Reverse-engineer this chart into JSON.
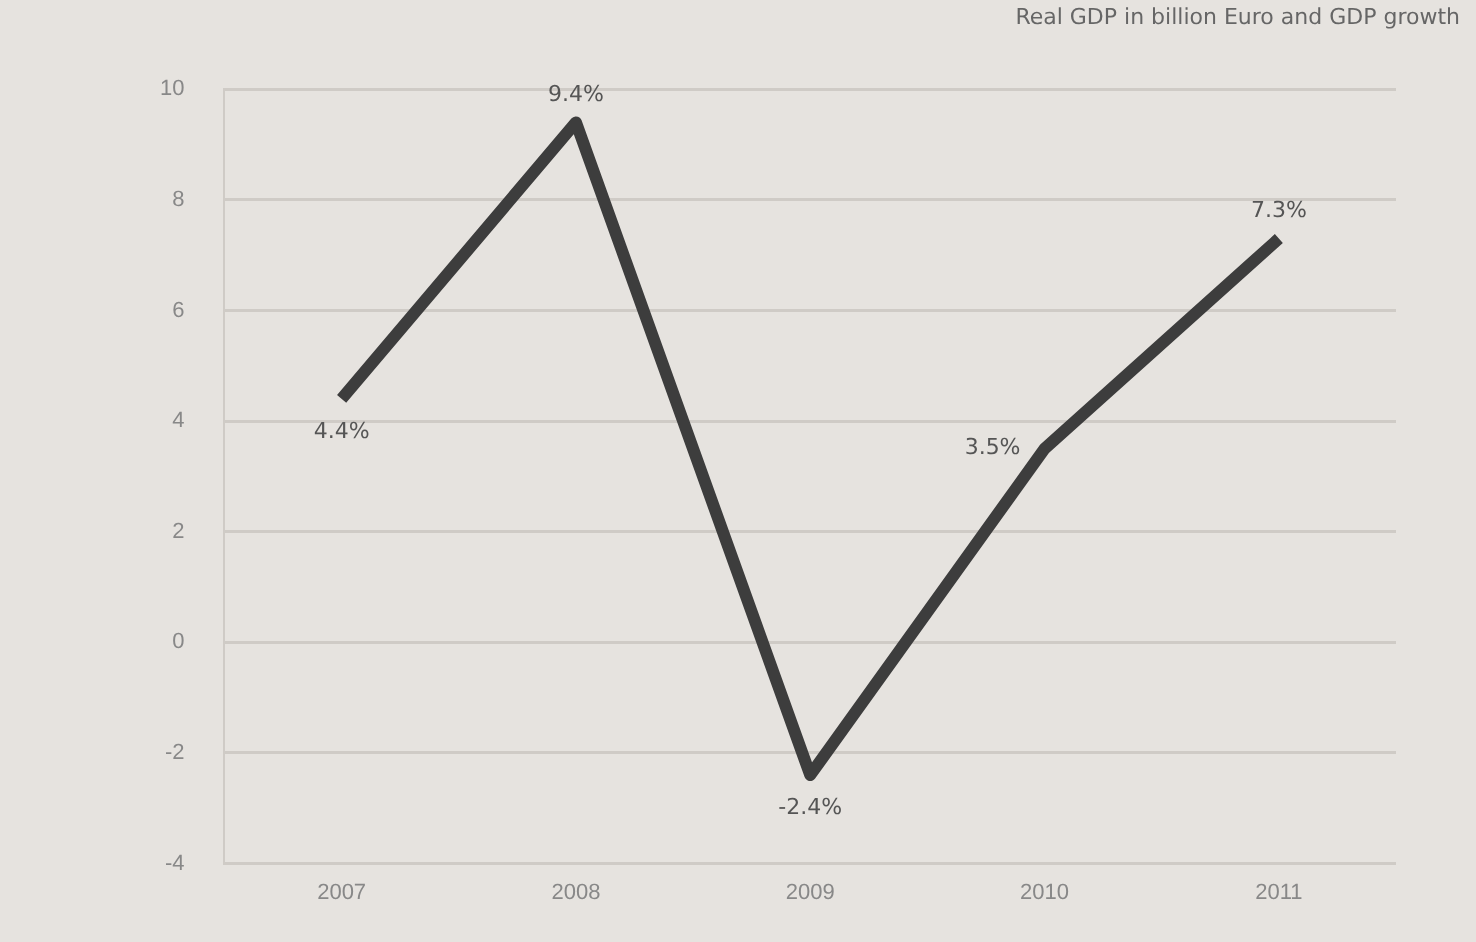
{
  "chart_data": {
    "type": "line",
    "title": "Real GDP in billion Euro and GDP growth",
    "categories": [
      "2007",
      "2008",
      "2009",
      "2010",
      "2011"
    ],
    "series": [
      {
        "color": "#3d3d3d",
        "values": [
          4.4,
          9.4,
          -2.4,
          3.5,
          7.3
        ],
        "value_labels": [
          "4.4%",
          "9.4%",
          "-2.4%",
          "3.5%",
          "7.3%"
        ]
      }
    ],
    "ylim": [
      -4,
      10
    ],
    "yticks": [
      -4,
      -2,
      0,
      2,
      4,
      6,
      8,
      10
    ],
    "grid": "y",
    "legend": false,
    "marker": "none",
    "line_style": "solid"
  }
}
